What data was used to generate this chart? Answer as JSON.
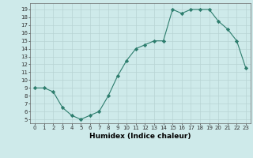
{
  "xlabel": "Humidex (Indice chaleur)",
  "x": [
    0,
    1,
    2,
    3,
    4,
    5,
    6,
    7,
    8,
    9,
    10,
    11,
    12,
    13,
    14,
    15,
    16,
    17,
    18,
    19,
    20,
    21,
    22,
    23
  ],
  "y": [
    9,
    9,
    8.5,
    6.5,
    5.5,
    5,
    5.5,
    6,
    8,
    10.5,
    12.5,
    14,
    14.5,
    15,
    15,
    19,
    18.5,
    19,
    19,
    19,
    17.5,
    16.5,
    15,
    11.5
  ],
  "line_color": "#2d7d6d",
  "marker": "D",
  "marker_size": 2.2,
  "bg_color": "#ceeaea",
  "grid_color": "#b8d4d4",
  "ylim": [
    4.5,
    19.8
  ],
  "xlim": [
    -0.5,
    23.5
  ],
  "yticks": [
    5,
    6,
    7,
    8,
    9,
    10,
    11,
    12,
    13,
    14,
    15,
    16,
    17,
    18,
    19
  ],
  "xticks": [
    0,
    1,
    2,
    3,
    4,
    5,
    6,
    7,
    8,
    9,
    10,
    11,
    12,
    13,
    14,
    15,
    16,
    17,
    18,
    19,
    20,
    21,
    22,
    23
  ],
  "tick_fontsize": 5.0,
  "label_fontsize": 6.5,
  "xlabel_fontweight": "bold"
}
